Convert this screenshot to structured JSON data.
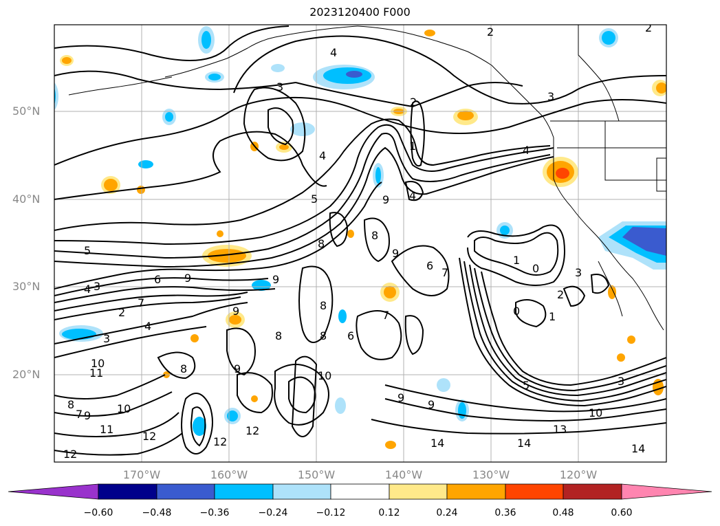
{
  "title": "2023120400 F000",
  "lat_labels": [
    "50°N",
    "40°N",
    "30°N",
    "20°N"
  ],
  "lon_labels": [
    "170°W",
    "160°W",
    "150°W",
    "140°W",
    "130°W",
    "120°W"
  ],
  "colorbar": {
    "ticks": [
      "−0.60",
      "−0.48",
      "−0.36",
      "−0.24",
      "−0.12",
      "0.12",
      "0.24",
      "0.36",
      "0.48",
      "0.60"
    ],
    "colors": [
      "#9932cc",
      "#00008b",
      "#3a5bcf",
      "#00bfff",
      "#aee2fa",
      "#ffffff",
      "#ffe98a",
      "#ffa500",
      "#ff4500",
      "#b22222",
      "#ff85b0"
    ]
  },
  "contour_labels": [
    "2",
    "2",
    "4",
    "3",
    "3",
    "2",
    "1",
    "4",
    "4",
    "5",
    "5",
    "4",
    "9",
    "8",
    "8",
    "9",
    "6",
    "7",
    "1",
    "0",
    "3",
    "2",
    "1",
    "0",
    "6",
    "9",
    "4",
    "3",
    "7",
    "2",
    "3",
    "4",
    "3",
    "10",
    "11",
    "9",
    "8",
    "9",
    "8",
    "8",
    "7",
    "6",
    "5",
    "8",
    "9",
    "10",
    "9",
    "12",
    "12",
    "11",
    "10",
    "12",
    "12",
    "14",
    "14",
    "14",
    "13",
    "10",
    "9",
    "7",
    "8",
    "9"
  ],
  "fill_colors": {
    "light_blue": "#aee2fa",
    "blue": "#00bfff",
    "mid_blue": "#3a5bcf",
    "yellow": "#ffe98a",
    "orange": "#ffa500",
    "red": "#ff4500"
  }
}
